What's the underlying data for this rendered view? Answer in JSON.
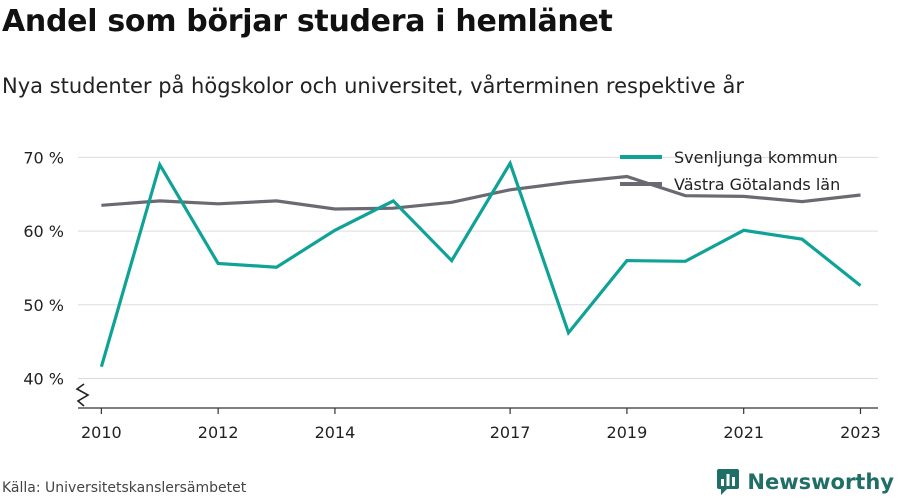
{
  "title": "Andel som börjar studera i hemlänet",
  "subtitle": "Nya studenter på högskolor och universitet, vårterminen respektive år",
  "source": "Källa: Universitetskanslersämbetet",
  "brand": {
    "name": "Newsworthy",
    "icon": "newsworthy-logo-icon",
    "color": "#1f6f66"
  },
  "chart_data": {
    "type": "line",
    "ylim": [
      36,
      71
    ],
    "xlim": [
      2009.6,
      2023.3
    ],
    "yticks": [
      40,
      50,
      60,
      70
    ],
    "ytick_labels": [
      "40 %",
      "50 %",
      "60 %",
      "70 %"
    ],
    "xticks": [
      2010,
      2012,
      2014,
      2017,
      2019,
      2021,
      2023
    ],
    "xtick_labels": [
      "2010",
      "2012",
      "2014",
      "2017",
      "2019",
      "2021",
      "2023"
    ],
    "grid": true,
    "axis_break": true,
    "legend_position": "top-right",
    "series": [
      {
        "name": "Svenljunga kommun",
        "color": "#0fa397",
        "x": [
          2010,
          2011,
          2012,
          2013,
          2014,
          2015,
          2016,
          2017,
          2018,
          2019,
          2020,
          2021,
          2022,
          2023
        ],
        "values": [
          41.6,
          69.0,
          55.6,
          55.1,
          60.1,
          64.1,
          56.0,
          69.2,
          46.2,
          56.0,
          55.9,
          60.1,
          58.9,
          52.6
        ]
      },
      {
        "name": "Västra Götalands län",
        "color": "#6b6a72",
        "x": [
          2010,
          2011,
          2012,
          2013,
          2014,
          2015,
          2016,
          2017,
          2018,
          2019,
          2020,
          2021,
          2022,
          2023
        ],
        "values": [
          63.5,
          64.1,
          63.7,
          64.1,
          63.0,
          63.1,
          63.9,
          65.6,
          66.6,
          67.4,
          64.8,
          64.7,
          64.0,
          64.9
        ]
      }
    ]
  }
}
